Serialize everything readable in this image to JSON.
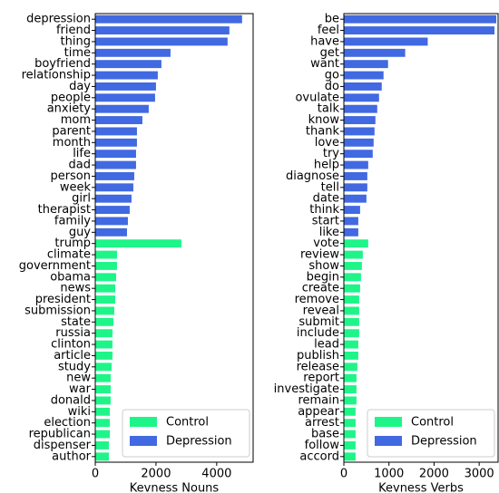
{
  "chart_data": [
    {
      "type": "bar",
      "orientation": "horizontal",
      "xlabel": "Kevness Nouns",
      "categories": [
        "depression",
        "friend",
        "thing",
        "time",
        "boyfriend",
        "relationship",
        "day",
        "people",
        "anxiety",
        "mom",
        "parent",
        "month",
        "life",
        "dad",
        "person",
        "week",
        "girl",
        "therapist",
        "family",
        "guy",
        "trump",
        "climate",
        "government",
        "obama",
        "news",
        "president",
        "submission",
        "state",
        "russia",
        "clinton",
        "article",
        "study",
        "new",
        "war",
        "donald",
        "wiki",
        "election",
        "republican",
        "dispenser",
        "author"
      ],
      "series": [
        {
          "name": "Control",
          "color": "#1ef589",
          "values": [
            null,
            null,
            null,
            null,
            null,
            null,
            null,
            null,
            null,
            null,
            null,
            null,
            null,
            null,
            null,
            null,
            null,
            null,
            null,
            null,
            2836,
            716,
            716,
            687,
            657,
            657,
            627,
            597,
            567,
            567,
            567,
            537,
            507,
            507,
            507,
            478,
            478,
            478,
            448,
            448
          ]
        },
        {
          "name": "Depression",
          "color": "#4169e1",
          "values": [
            4836,
            4418,
            4358,
            2478,
            2179,
            2060,
            2000,
            1970,
            1761,
            1552,
            1373,
            1373,
            1343,
            1343,
            1284,
            1254,
            1194,
            1134,
            1075,
            1045,
            null,
            null,
            null,
            null,
            null,
            null,
            null,
            null,
            null,
            null,
            null,
            null,
            null,
            null,
            null,
            null,
            null,
            null,
            null,
            null
          ]
        }
      ],
      "xlim": [
        0,
        5200
      ],
      "xticks": [
        0,
        2000,
        4000
      ],
      "legend": "lower right"
    },
    {
      "type": "bar",
      "orientation": "horizontal",
      "xlabel": "Kevness Verbs",
      "categories": [
        "be",
        "feel",
        "have",
        "get",
        "want",
        "go",
        "do",
        "ovulate",
        "talk",
        "know",
        "thank",
        "love",
        "try",
        "help",
        "diagnose",
        "tell",
        "date",
        "think",
        "start",
        "like",
        "vote",
        "review",
        "show",
        "begin",
        "create",
        "remove",
        "reveal",
        "submit",
        "include",
        "lead",
        "publish",
        "release",
        "report",
        "investigate",
        "remain",
        "appear",
        "arrest",
        "base",
        "follow",
        "accord"
      ],
      "series": [
        {
          "name": "Control",
          "color": "#1ef589",
          "values": [
            null,
            null,
            null,
            null,
            null,
            null,
            null,
            null,
            null,
            null,
            null,
            null,
            null,
            null,
            null,
            null,
            null,
            null,
            null,
            null,
            540,
            420,
            400,
            380,
            360,
            340,
            340,
            340,
            340,
            320,
            320,
            300,
            280,
            280,
            280,
            260,
            260,
            260,
            260,
            260
          ]
        },
        {
          "name": "Depression",
          "color": "#4169e1",
          "values": [
            3380,
            3340,
            1860,
            1360,
            980,
            880,
            840,
            780,
            740,
            700,
            680,
            660,
            640,
            540,
            520,
            520,
            500,
            360,
            320,
            320,
            null,
            null,
            null,
            null,
            null,
            null,
            null,
            null,
            null,
            null,
            null,
            null,
            null,
            null,
            null,
            null,
            null,
            null,
            null,
            null
          ]
        }
      ],
      "xlim": [
        0,
        3420
      ],
      "xticks": [
        0,
        1000,
        2000,
        3000
      ],
      "legend": "lower right"
    }
  ]
}
